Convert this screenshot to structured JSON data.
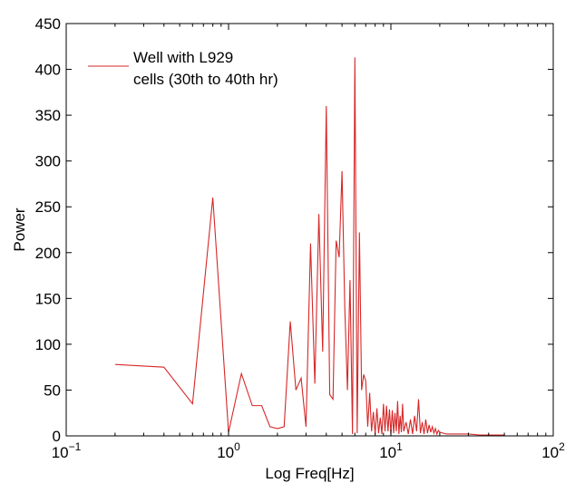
{
  "chart_data": {
    "type": "line",
    "xlabel": "Log Freq[Hz]",
    "ylabel": "Power",
    "xscale": "log",
    "xlim": [
      0.1,
      100
    ],
    "ylim": [
      0,
      450
    ],
    "x_ticks": [
      {
        "value": 0.1,
        "base": "10",
        "exp": "−1"
      },
      {
        "value": 1,
        "base": "10",
        "exp": "0"
      },
      {
        "value": 10,
        "base": "10",
        "exp": "1"
      },
      {
        "value": 100,
        "base": "10",
        "exp": "2"
      }
    ],
    "y_ticks": [
      0,
      50,
      100,
      150,
      200,
      250,
      300,
      350,
      400,
      450
    ],
    "grid": false,
    "legend_position": "top-left",
    "series": [
      {
        "name": "Well with L929 cells (30th to 40th hr)",
        "name_lines": [
          "Well with L929",
          "cells (30th to 40th hr)"
        ],
        "color": "#d62728",
        "x": [
          0.2,
          0.4,
          0.6,
          0.8,
          1.0,
          1.2,
          1.4,
          1.6,
          1.8,
          2.0,
          2.2,
          2.4,
          2.6,
          2.8,
          3.0,
          3.2,
          3.4,
          3.6,
          3.8,
          4.0,
          4.2,
          4.4,
          4.6,
          4.8,
          5.0,
          5.2,
          5.4,
          5.6,
          5.8,
          6.0,
          6.2,
          6.4,
          6.6,
          6.8,
          7.0,
          7.2,
          7.4,
          7.6,
          7.8,
          8.0,
          8.2,
          8.4,
          8.6,
          8.8,
          9.0,
          9.2,
          9.4,
          9.6,
          9.8,
          10.0,
          10.2,
          10.4,
          10.6,
          10.8,
          11.0,
          11.2,
          11.4,
          11.6,
          11.8,
          12.0,
          12.4,
          12.8,
          13.2,
          13.6,
          14.0,
          14.4,
          14.8,
          15.2,
          15.6,
          16.0,
          16.4,
          16.8,
          17.2,
          17.6,
          18.0,
          18.4,
          18.8,
          19.2,
          19.6,
          20.0,
          21.0,
          22.0,
          25.0,
          30.0,
          35.0,
          40.0,
          45.0,
          50.0
        ],
        "y": [
          78,
          75,
          35,
          260,
          4,
          68,
          33,
          33,
          10,
          8,
          10,
          125,
          50,
          63,
          10,
          210,
          57,
          242,
          92,
          360,
          45,
          40,
          213,
          195,
          289,
          140,
          50,
          170,
          2,
          413,
          3,
          222,
          50,
          67,
          60,
          10,
          47,
          5,
          26,
          2,
          30,
          3,
          20,
          2,
          35,
          5,
          33,
          5,
          29,
          2,
          28,
          3,
          25,
          5,
          38,
          2,
          22,
          4,
          35,
          5,
          15,
          2,
          18,
          2,
          22,
          5,
          40,
          3,
          15,
          2,
          18,
          3,
          12,
          4,
          10,
          3,
          8,
          2,
          6,
          4,
          3,
          2,
          2,
          2,
          1,
          1,
          1,
          1
        ]
      }
    ]
  }
}
